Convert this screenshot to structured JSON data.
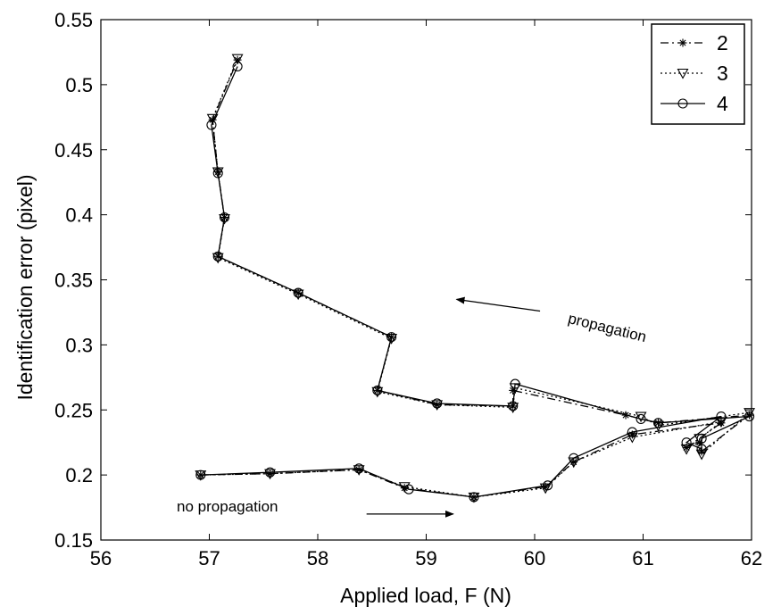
{
  "chart_data": {
    "type": "line",
    "xlabel": "Applied load, F (N)",
    "ylabel": "Identification error (pixel)",
    "xlim": [
      56,
      62
    ],
    "ylim": [
      0.15,
      0.55
    ],
    "xticks": [
      56,
      57,
      58,
      59,
      60,
      61,
      62
    ],
    "xtick_labels": [
      "56",
      "57",
      "58",
      "59",
      "60",
      "61",
      "62"
    ],
    "yticks": [
      0.15,
      0.2,
      0.25,
      0.3,
      0.35,
      0.4,
      0.45,
      0.5,
      0.55
    ],
    "ytick_labels": [
      "0.15",
      "0.2",
      "0.25",
      "0.3",
      "0.35",
      "0.4",
      "0.45",
      "0.5",
      "0.55"
    ],
    "grid": false,
    "legend_position": "top-right",
    "series": [
      {
        "name": "2",
        "line_style": "dash-dot",
        "marker": "asterisk",
        "x": [
          56.92,
          57.56,
          58.38,
          58.8,
          59.44,
          60.1,
          60.36,
          60.9,
          61.72,
          61.4,
          61.52,
          61.54,
          61.98,
          61.14,
          60.84,
          59.8,
          59.8,
          59.1,
          58.55,
          58.68,
          57.82,
          57.08,
          57.14,
          57.08,
          57.03,
          57.26
        ],
        "y": [
          0.2,
          0.201,
          0.204,
          0.19,
          0.183,
          0.191,
          0.21,
          0.231,
          0.24,
          0.221,
          0.225,
          0.218,
          0.246,
          0.24,
          0.246,
          0.265,
          0.253,
          0.254,
          0.265,
          0.306,
          0.34,
          0.368,
          0.398,
          0.433,
          0.473,
          0.519
        ]
      },
      {
        "name": "3",
        "line_style": "dotted",
        "marker": "triangle-down",
        "x": [
          56.92,
          57.56,
          58.38,
          58.8,
          59.44,
          60.1,
          60.36,
          60.9,
          61.72,
          61.4,
          61.52,
          61.54,
          61.98,
          61.14,
          60.98,
          59.82,
          59.8,
          59.1,
          58.55,
          58.68,
          57.82,
          57.08,
          57.14,
          57.08,
          57.03,
          57.26
        ],
        "y": [
          0.2,
          0.201,
          0.204,
          0.191,
          0.183,
          0.19,
          0.21,
          0.229,
          0.241,
          0.22,
          0.228,
          0.216,
          0.248,
          0.238,
          0.245,
          0.267,
          0.252,
          0.254,
          0.264,
          0.305,
          0.339,
          0.367,
          0.397,
          0.433,
          0.474,
          0.52
        ]
      },
      {
        "name": "4",
        "line_style": "solid",
        "marker": "circle",
        "x": [
          56.92,
          57.56,
          58.38,
          58.84,
          59.44,
          60.12,
          60.36,
          60.9,
          61.72,
          61.4,
          61.54,
          61.54,
          61.98,
          61.14,
          60.98,
          59.82,
          59.8,
          59.1,
          58.55,
          58.68,
          57.82,
          57.08,
          57.14,
          57.08,
          57.02,
          57.26
        ],
        "y": [
          0.2,
          0.202,
          0.205,
          0.189,
          0.183,
          0.192,
          0.213,
          0.233,
          0.245,
          0.225,
          0.22,
          0.228,
          0.245,
          0.24,
          0.243,
          0.27,
          0.253,
          0.255,
          0.265,
          0.306,
          0.34,
          0.368,
          0.398,
          0.432,
          0.469,
          0.514
        ]
      }
    ],
    "annotations": [
      {
        "text": "propagation",
        "x": 60.3,
        "y": 0.317,
        "rotation": 14,
        "arrow_from": [
          60.05,
          0.326
        ],
        "arrow_to": [
          59.28,
          0.335
        ]
      },
      {
        "text": "no propagation",
        "x": 56.7,
        "y": 0.172,
        "rotation": 0,
        "arrow_from": [
          58.45,
          0.17
        ],
        "arrow_to": [
          59.25,
          0.17
        ]
      }
    ]
  }
}
